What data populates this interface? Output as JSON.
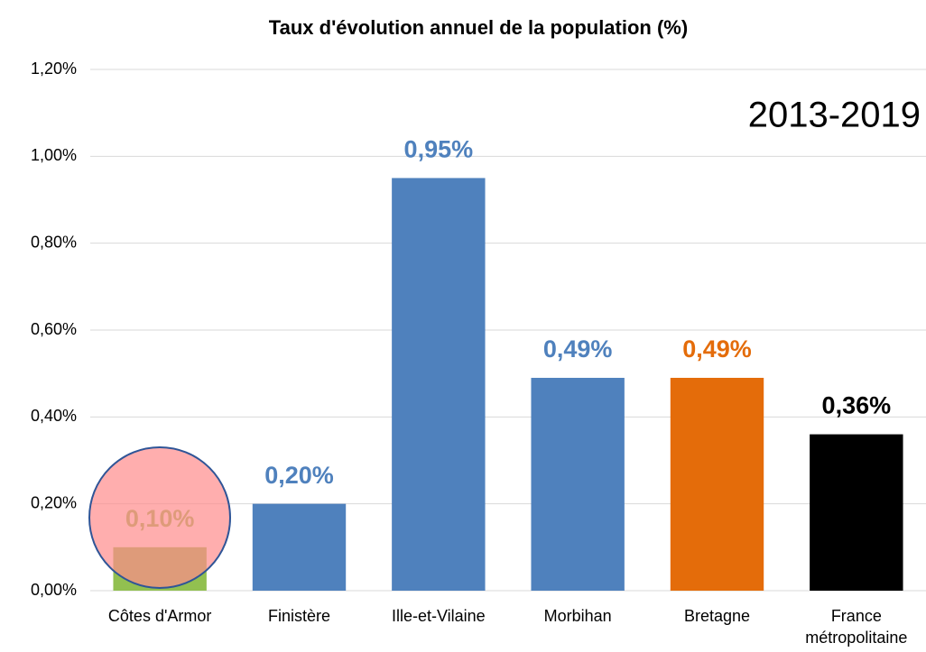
{
  "chart_data": {
    "type": "bar",
    "title": "Taux d'évolution annuel de la population (%)",
    "annotation": "2013-2019",
    "categories": [
      "Côtes d'Armor",
      "Finistère",
      "Ille-et-Vilaine",
      "Morbihan",
      "Bretagne",
      "France métropolitaine"
    ],
    "values": [
      0.1,
      0.2,
      0.95,
      0.49,
      0.49,
      0.36
    ],
    "value_labels": [
      "0,10%",
      "0,20%",
      "0,95%",
      "0,49%",
      "0,49%",
      "0,36%"
    ],
    "colors": [
      "#92c050",
      "#4f81bd",
      "#4f81bd",
      "#4f81bd",
      "#e46c0a",
      "#000000"
    ],
    "ylim": [
      0,
      1.2
    ],
    "yticks": [
      {
        "value": 0,
        "label": "0,00%"
      },
      {
        "value": 0.2,
        "label": "0,20%"
      },
      {
        "value": 0.4,
        "label": "0,40%"
      },
      {
        "value": 0.6,
        "label": "0,60%"
      },
      {
        "value": 0.8,
        "label": "0,80%"
      },
      {
        "value": 1.0,
        "label": "1,00%"
      },
      {
        "value": 1.2,
        "label": "1,20%"
      }
    ],
    "grid": true
  }
}
